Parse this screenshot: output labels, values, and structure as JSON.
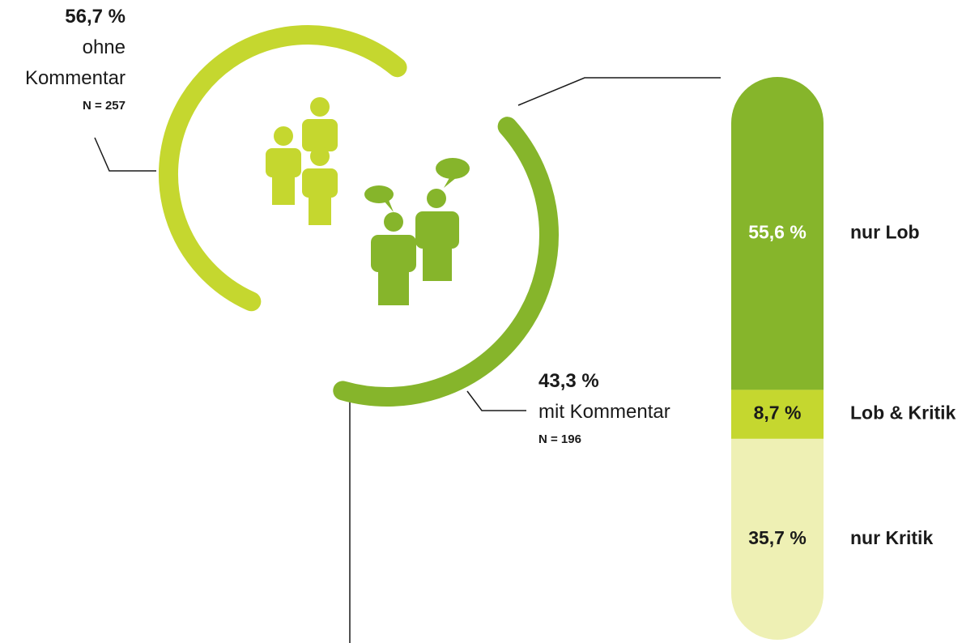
{
  "chart_data": [
    {
      "type": "donut",
      "categories": [
        "ohne Kommentar",
        "mit Kommentar"
      ],
      "values": [
        56.7,
        43.3
      ],
      "value_labels": [
        "56,7 %",
        "43,3 %"
      ],
      "annotations": [
        "N = 257",
        "N = 196"
      ],
      "colors": [
        "#c5d72f",
        "#86b52b"
      ]
    },
    {
      "type": "stacked_bar",
      "categories": [
        "nur Lob",
        "Lob & Kritik",
        "nur Kritik"
      ],
      "values": [
        55.6,
        8.7,
        35.7
      ],
      "value_labels": [
        "55,6 %",
        "8,7 %",
        "35,7 %"
      ],
      "colors": [
        "#86b52b",
        "#c5d72f",
        "#eef0b4"
      ],
      "value_label_colors": [
        "#ffffff",
        "#1a1a1a",
        "#1a1a1a"
      ]
    }
  ]
}
